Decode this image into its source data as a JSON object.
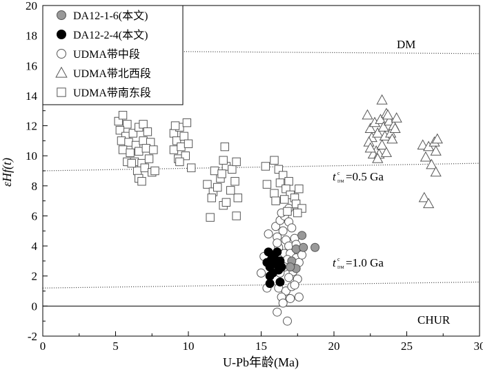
{
  "chart_data": {
    "type": "scatter",
    "xlabel": "U-Pb年龄(Ma)",
    "ylabel": "εHf(t)",
    "xlim": [
      0,
      30
    ],
    "ylim": [
      -2,
      20
    ],
    "xticks": [
      "0",
      "5",
      "10",
      "15",
      "20",
      "25",
      "30"
    ],
    "yticks": [
      "-2",
      "0",
      "2",
      "4",
      "6",
      "8",
      "10",
      "12",
      "14",
      "16",
      "18",
      "20"
    ],
    "grid": false,
    "legend": {
      "position": "top-left",
      "items": [
        {
          "label": "DA12-1-6(本文)",
          "marker": "circle",
          "fill": "#999999"
        },
        {
          "label": "DA12-2-4(本文)",
          "marker": "circle",
          "fill": "#000000"
        },
        {
          "label": "UDMA带中段",
          "marker": "circle",
          "fill": "#ffffff"
        },
        {
          "label": "UDMA带北西段",
          "marker": "triangle",
          "fill": "#ffffff"
        },
        {
          "label": "UDMA带南东段",
          "marker": "square",
          "fill": "#ffffff"
        }
      ]
    },
    "reference_lines": [
      {
        "name": "DM",
        "style": "dotted",
        "points": [
          [
            0,
            17.0
          ],
          [
            30,
            16.8
          ]
        ]
      },
      {
        "name": "tDM=0.5 Ga",
        "style": "dotted",
        "points": [
          [
            0,
            9.0
          ],
          [
            30,
            9.5
          ]
        ]
      },
      {
        "name": "tDM=1.0 Ga",
        "style": "dotted",
        "points": [
          [
            0,
            1.2
          ],
          [
            30,
            1.6
          ]
        ]
      },
      {
        "name": "CHUR",
        "style": "solid",
        "points": [
          [
            0,
            0
          ],
          [
            30,
            0
          ]
        ]
      }
    ],
    "annotations": {
      "dm": "DM",
      "chur": "CHUR",
      "t05_prefix": "t",
      "t05_sup": "c",
      "t05_sub": "DM",
      "t05_value": "=0.5 Ga",
      "t10_prefix": "t",
      "t10_sup": "c",
      "t10_sub": "DM",
      "t10_value": "=1.0 Ga"
    },
    "series": [
      {
        "name": "DA12-1-6(本文)",
        "marker": "circle",
        "fill": "#999999",
        "points": [
          [
            17.4,
            3.8
          ],
          [
            17.9,
            3.9
          ],
          [
            18.7,
            3.9
          ],
          [
            17.8,
            4.7
          ],
          [
            17.1,
            3.0
          ],
          [
            17.4,
            2.5
          ],
          [
            17.0,
            2.6
          ]
        ]
      },
      {
        "name": "DA12-2-4(本文)",
        "marker": "circle",
        "fill": "#000000",
        "points": [
          [
            15.4,
            2.9
          ],
          [
            15.7,
            3.1
          ],
          [
            15.9,
            3.4
          ],
          [
            16.1,
            3.6
          ],
          [
            15.6,
            2.6
          ],
          [
            16.0,
            2.8
          ],
          [
            16.3,
            3.0
          ],
          [
            15.6,
            2.0
          ],
          [
            15.8,
            2.2
          ],
          [
            16.2,
            2.4
          ],
          [
            15.6,
            1.5
          ],
          [
            16.3,
            1.6
          ],
          [
            16.1,
            2.9
          ],
          [
            16.4,
            2.6
          ],
          [
            15.5,
            3.6
          ]
        ]
      },
      {
        "name": "UDMA带中段",
        "marker": "circle",
        "fill": "#ffffff",
        "points": [
          [
            15.5,
            4.8
          ],
          [
            16.0,
            5.3
          ],
          [
            16.3,
            5.7
          ],
          [
            16.6,
            6.0
          ],
          [
            16.9,
            6.5
          ],
          [
            16.4,
            6.2
          ],
          [
            16.9,
            5.6
          ],
          [
            16.5,
            5.0
          ],
          [
            17.1,
            5.2
          ],
          [
            16.1,
            4.6
          ],
          [
            16.7,
            4.4
          ],
          [
            17.3,
            4.5
          ],
          [
            16.2,
            3.9
          ],
          [
            16.9,
            4.0
          ],
          [
            17.4,
            4.1
          ],
          [
            16.6,
            3.5
          ],
          [
            17.0,
            3.5
          ],
          [
            16.8,
            3.1
          ],
          [
            17.4,
            3.2
          ],
          [
            16.6,
            2.6
          ],
          [
            17.2,
            2.3
          ],
          [
            17.6,
            2.9
          ],
          [
            16.3,
            2.2
          ],
          [
            16.9,
            1.9
          ],
          [
            17.5,
            1.8
          ],
          [
            16.2,
            1.2
          ],
          [
            16.7,
            1.0
          ],
          [
            17.1,
            1.3
          ],
          [
            16.4,
            0.6
          ],
          [
            17.0,
            0.5
          ],
          [
            16.5,
            0.2
          ],
          [
            17.6,
            0.6
          ],
          [
            16.1,
            -0.4
          ],
          [
            16.8,
            -1.0
          ],
          [
            15.2,
            3.3
          ],
          [
            15.0,
            2.2
          ],
          [
            15.4,
            1.2
          ],
          [
            17.3,
            1.4
          ],
          [
            16.1,
            4.2
          ],
          [
            17.8,
            3.4
          ]
        ]
      },
      {
        "name": "UDMA带北西段",
        "marker": "triangle",
        "fill": "#ffffff",
        "points": [
          [
            22.3,
            12.7
          ],
          [
            22.5,
            11.8
          ],
          [
            22.6,
            11.2
          ],
          [
            22.8,
            12.2
          ],
          [
            23.0,
            11.5
          ],
          [
            22.4,
            10.9
          ],
          [
            22.9,
            10.3
          ],
          [
            23.2,
            12.4
          ],
          [
            23.4,
            11.9
          ],
          [
            23.6,
            12.8
          ],
          [
            23.8,
            12.3
          ],
          [
            23.5,
            11.3
          ],
          [
            23.9,
            11.5
          ],
          [
            24.1,
            12.0
          ],
          [
            24.0,
            11.1
          ],
          [
            23.3,
            10.7
          ],
          [
            22.7,
            10.1
          ],
          [
            23.1,
            10.1
          ],
          [
            23.6,
            10.2
          ],
          [
            23.3,
            13.7
          ],
          [
            23.7,
            12.7
          ],
          [
            24.2,
            11.8
          ],
          [
            24.3,
            12.5
          ],
          [
            23.0,
            9.8
          ],
          [
            22.5,
            10.5
          ],
          [
            26.1,
            10.7
          ],
          [
            26.5,
            10.6
          ],
          [
            26.9,
            10.9
          ],
          [
            27.1,
            11.1
          ],
          [
            26.3,
            9.9
          ],
          [
            27.0,
            10.3
          ],
          [
            26.7,
            9.4
          ],
          [
            27.0,
            8.9
          ],
          [
            26.2,
            7.2
          ],
          [
            26.5,
            6.8
          ]
        ]
      },
      {
        "name": "UDMA带南东段",
        "marker": "square",
        "fill": "#ffffff",
        "points": [
          [
            5.2,
            12.3
          ],
          [
            5.5,
            12.7
          ],
          [
            5.8,
            12.1
          ],
          [
            5.3,
            11.7
          ],
          [
            5.7,
            11.3
          ],
          [
            6.2,
            11.5
          ],
          [
            6.6,
            11.9
          ],
          [
            6.9,
            12.1
          ],
          [
            7.2,
            11.6
          ],
          [
            5.4,
            11.0
          ],
          [
            5.9,
            10.9
          ],
          [
            6.4,
            10.7
          ],
          [
            6.9,
            11.0
          ],
          [
            7.4,
            10.9
          ],
          [
            5.5,
            10.4
          ],
          [
            6.0,
            10.2
          ],
          [
            6.6,
            10.3
          ],
          [
            7.1,
            10.5
          ],
          [
            7.6,
            10.4
          ],
          [
            5.8,
            9.6
          ],
          [
            6.3,
            9.6
          ],
          [
            6.8,
            9.5
          ],
          [
            7.3,
            9.8
          ],
          [
            6.5,
            9.0
          ],
          [
            7.0,
            9.2
          ],
          [
            7.5,
            8.9
          ],
          [
            6.6,
            8.5
          ],
          [
            7.7,
            9.0
          ],
          [
            6.8,
            8.3
          ],
          [
            6.1,
            9.5
          ],
          [
            9.0,
            11.5
          ],
          [
            9.4,
            11.9
          ],
          [
            9.9,
            12.2
          ],
          [
            9.2,
            11.0
          ],
          [
            9.7,
            11.3
          ],
          [
            9.0,
            10.4
          ],
          [
            9.5,
            10.6
          ],
          [
            10.0,
            10.8
          ],
          [
            9.3,
            9.8
          ],
          [
            9.8,
            10.0
          ],
          [
            9.4,
            9.6
          ],
          [
            10.2,
            9.2
          ],
          [
            9.1,
            12.0
          ],
          [
            12.5,
            10.6
          ],
          [
            11.3,
            8.1
          ],
          [
            11.7,
            7.6
          ],
          [
            12.0,
            7.9
          ],
          [
            12.4,
            6.7
          ],
          [
            12.6,
            6.9
          ],
          [
            11.6,
            7.2
          ],
          [
            11.5,
            5.9
          ],
          [
            12.2,
            8.5
          ],
          [
            12.6,
            9.3
          ],
          [
            13.0,
            9.1
          ],
          [
            13.2,
            8.3
          ],
          [
            11.8,
            9.0
          ],
          [
            12.4,
            9.7
          ],
          [
            13.3,
            9.6
          ],
          [
            13.4,
            7.2
          ],
          [
            13.3,
            6.0
          ],
          [
            12.9,
            7.7
          ],
          [
            12.3,
            8.8
          ],
          [
            15.3,
            9.3
          ],
          [
            15.9,
            9.7
          ],
          [
            16.2,
            9.1
          ],
          [
            16.5,
            8.7
          ],
          [
            16.9,
            8.3
          ],
          [
            16.3,
            8.2
          ],
          [
            16.7,
            7.8
          ],
          [
            17.0,
            7.4
          ],
          [
            16.6,
            7.1
          ],
          [
            17.3,
            7.2
          ],
          [
            17.6,
            7.8
          ],
          [
            17.4,
            6.8
          ],
          [
            17.8,
            6.5
          ],
          [
            15.4,
            8.1
          ],
          [
            15.9,
            7.5
          ],
          [
            16.0,
            7.0
          ],
          [
            16.8,
            6.3
          ],
          [
            17.5,
            6.2
          ]
        ]
      }
    ]
  }
}
